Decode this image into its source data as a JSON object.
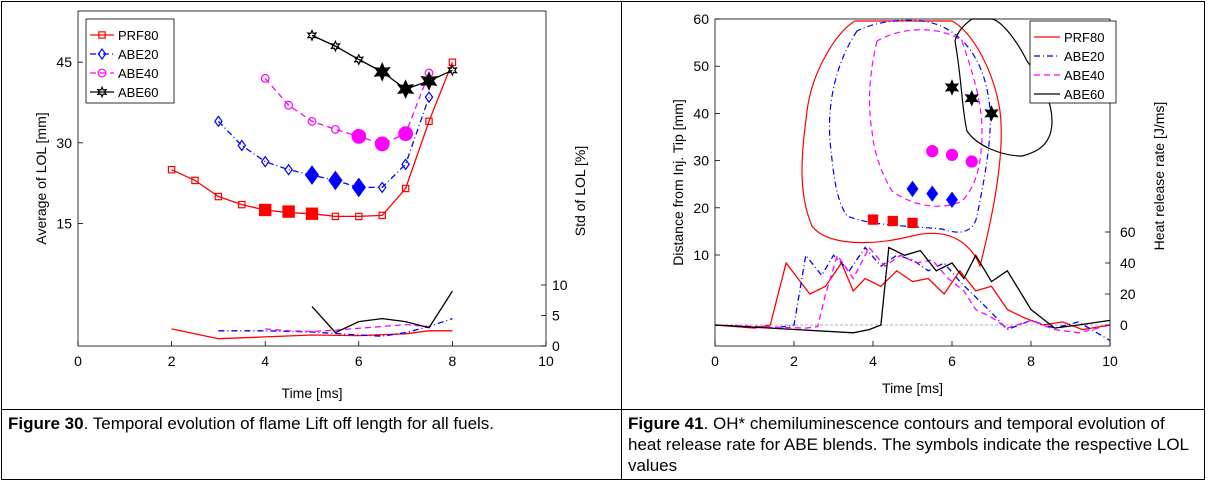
{
  "figures": [
    {
      "caption_label": "Figure 30",
      "caption_text": ". Temporal evolution of flame Lift off length for all fuels."
    },
    {
      "caption_label": "Figure 41",
      "caption_text": ". OH* chemiluminescence contours and temporal evolution of heat release rate for ABE blends. The symbols indicate the respective LOL values"
    }
  ],
  "colors": {
    "PRF80": "#ff0000",
    "ABE20": "#0000ff",
    "ABE40": "#ff00ff",
    "ABE60": "#000000"
  },
  "chart_data": [
    {
      "type": "line",
      "xlabel": "Time [ms]",
      "ylabel_left": "Average of LOL [mm]",
      "ylabel_right": "Std of LOL [%]",
      "xlim": [
        0,
        10
      ],
      "xticks": [
        "0",
        "2",
        "4",
        "6",
        "8",
        "10"
      ],
      "yticks_left": [
        "15",
        "30",
        "45"
      ],
      "yticks_right": [
        "0",
        "5",
        "10"
      ],
      "legend": [
        "PRF80",
        "ABE20",
        "ABE40",
        "ABE60"
      ],
      "legend_position": "top-left",
      "series_mean": [
        {
          "name": "PRF80",
          "x": [
            2,
            2.5,
            3,
            3.5,
            4,
            4.5,
            5,
            5.5,
            6,
            6.5,
            7,
            7.5,
            8
          ],
          "y": [
            25,
            23,
            20,
            18.5,
            17.5,
            17,
            16.8,
            16.3,
            16.3,
            16.5,
            21.5,
            34,
            45
          ]
        },
        {
          "name": "ABE20",
          "x": [
            3,
            3.5,
            4,
            4.5,
            5,
            5.5,
            6,
            6.5,
            7,
            7.5
          ],
          "y": [
            34,
            29.5,
            26.5,
            25,
            24,
            23,
            21.7,
            21.7,
            26,
            38.5
          ]
        },
        {
          "name": "ABE40",
          "x": [
            4,
            4.5,
            5,
            5.5,
            6,
            6.5,
            7,
            7.5
          ],
          "y": [
            42,
            37,
            34,
            32.5,
            31.2,
            29.8,
            31.7,
            43
          ]
        },
        {
          "name": "ABE60",
          "x": [
            5,
            5.5,
            6,
            6.5,
            7,
            7.5,
            8
          ],
          "y": [
            50,
            48,
            45.5,
            43.2,
            40,
            41.5,
            43.5
          ]
        }
      ],
      "lol_markers": [
        {
          "name": "PRF80",
          "x": [
            4,
            4.5,
            5
          ],
          "y": [
            17.5,
            17.2,
            16.8
          ]
        },
        {
          "name": "ABE20",
          "x": [
            5,
            5.5,
            6
          ],
          "y": [
            24,
            23,
            21.7
          ]
        },
        {
          "name": "ABE40",
          "x": [
            6,
            6.5,
            7
          ],
          "y": [
            31.2,
            29.8,
            31.7
          ]
        },
        {
          "name": "ABE60",
          "x": [
            6.5,
            7,
            7.5
          ],
          "y": [
            43.2,
            40,
            41.5
          ]
        }
      ],
      "series_std": [
        {
          "name": "PRF80",
          "x": [
            2,
            3,
            4,
            5,
            6,
            7,
            7.5,
            8
          ],
          "y": [
            2.8,
            1.2,
            1.5,
            1.8,
            1.7,
            2.0,
            2.5,
            2.5
          ]
        },
        {
          "name": "ABE20",
          "x": [
            3,
            4,
            5,
            6,
            6.5,
            7,
            7.5,
            8
          ],
          "y": [
            2.5,
            2.5,
            2.3,
            1.8,
            1.6,
            2.2,
            3.2,
            4.5
          ]
        },
        {
          "name": "ABE40",
          "x": [
            4,
            4.5,
            5,
            5.5,
            6,
            6.5,
            7,
            7.5
          ],
          "y": [
            2.8,
            2.5,
            2.4,
            2.6,
            2.9,
            3.2,
            3.5,
            3.2
          ]
        },
        {
          "name": "ABE60",
          "x": [
            5,
            5.5,
            6,
            6.5,
            7,
            7.5,
            8
          ],
          "y": [
            6.5,
            2.2,
            4.0,
            4.5,
            4.0,
            3.0,
            9.0
          ]
        }
      ]
    },
    {
      "type": "line",
      "xlabel": "Time [ms]",
      "ylabel_left": "Distance from Inj. Tip [mm]",
      "ylabel_right": "Heat release rate [J/ms]",
      "xlim": [
        0,
        10
      ],
      "ylim_left": [
        10,
        60
      ],
      "xticks": [
        "0",
        "2",
        "4",
        "6",
        "8",
        "10"
      ],
      "yticks_left": [
        "10",
        "20",
        "30",
        "40",
        "50",
        "60"
      ],
      "yticks_right": [
        "0",
        "20",
        "40",
        "60"
      ],
      "legend": [
        "PRF80",
        "ABE20",
        "ABE40",
        "ABE60"
      ],
      "legend_position": "top-right",
      "lol_markers": [
        {
          "name": "PRF80",
          "x": [
            4,
            4.5,
            5
          ],
          "y": [
            17.5,
            17.2,
            16.8
          ]
        },
        {
          "name": "ABE20",
          "x": [
            5,
            5.5,
            6
          ],
          "y": [
            24,
            23,
            21.7
          ]
        },
        {
          "name": "ABE40",
          "x": [
            5.5,
            6,
            6.5
          ],
          "y": [
            32,
            31.2,
            29.8
          ]
        },
        {
          "name": "ABE60",
          "x": [
            6,
            6.5,
            7
          ],
          "y": [
            45.5,
            43.2,
            40
          ]
        }
      ],
      "heat_release": [
        {
          "name": "PRF80",
          "x": [
            0,
            1,
            1.4,
            1.8,
            2.1,
            2.4,
            2.8,
            3.2,
            3.5,
            3.8,
            4.2,
            4.6,
            5,
            5.4,
            5.8,
            6.2,
            6.6,
            7,
            7.4,
            7.8,
            8.3,
            8.8,
            9.3,
            10
          ],
          "y": [
            0,
            -2,
            0,
            40,
            30,
            20,
            25,
            40,
            22,
            30,
            25,
            35,
            28,
            30,
            20,
            35,
            22,
            25,
            10,
            5,
            0,
            2,
            -3,
            0
          ]
        },
        {
          "name": "ABE20",
          "x": [
            0,
            1.5,
            2.0,
            2.3,
            2.7,
            3.0,
            3.4,
            3.8,
            4.2,
            4.6,
            5.0,
            5.4,
            5.8,
            6.2,
            6.6,
            7.0,
            7.4,
            8.0,
            8.6,
            9.2,
            10
          ],
          "y": [
            0,
            -2,
            0,
            45,
            32,
            45,
            35,
            50,
            38,
            45,
            42,
            35,
            40,
            28,
            18,
            8,
            -3,
            3,
            -2,
            2,
            -10
          ]
        },
        {
          "name": "ABE40",
          "x": [
            0,
            2.3,
            2.6,
            2.8,
            3.1,
            3.5,
            3.9,
            4.3,
            4.7,
            5.1,
            5.5,
            5.9,
            6.3,
            6.6,
            7.0,
            7.4,
            8.0,
            8.6,
            9.2,
            10
          ],
          "y": [
            0,
            -2,
            -1,
            20,
            45,
            30,
            50,
            38,
            45,
            40,
            42,
            30,
            22,
            10,
            5,
            -2,
            3,
            -3,
            -5,
            0
          ]
        },
        {
          "name": "ABE60",
          "x": [
            0,
            3.5,
            3.9,
            4.2,
            4.4,
            4.8,
            5.2,
            5.6,
            6.0,
            6.3,
            6.6,
            7.0,
            7.4,
            8.0,
            8.6,
            9.2,
            10
          ],
          "y": [
            0,
            -5,
            -3,
            0,
            50,
            45,
            48,
            35,
            40,
            30,
            45,
            28,
            35,
            10,
            -2,
            0,
            3
          ]
        }
      ]
    }
  ]
}
